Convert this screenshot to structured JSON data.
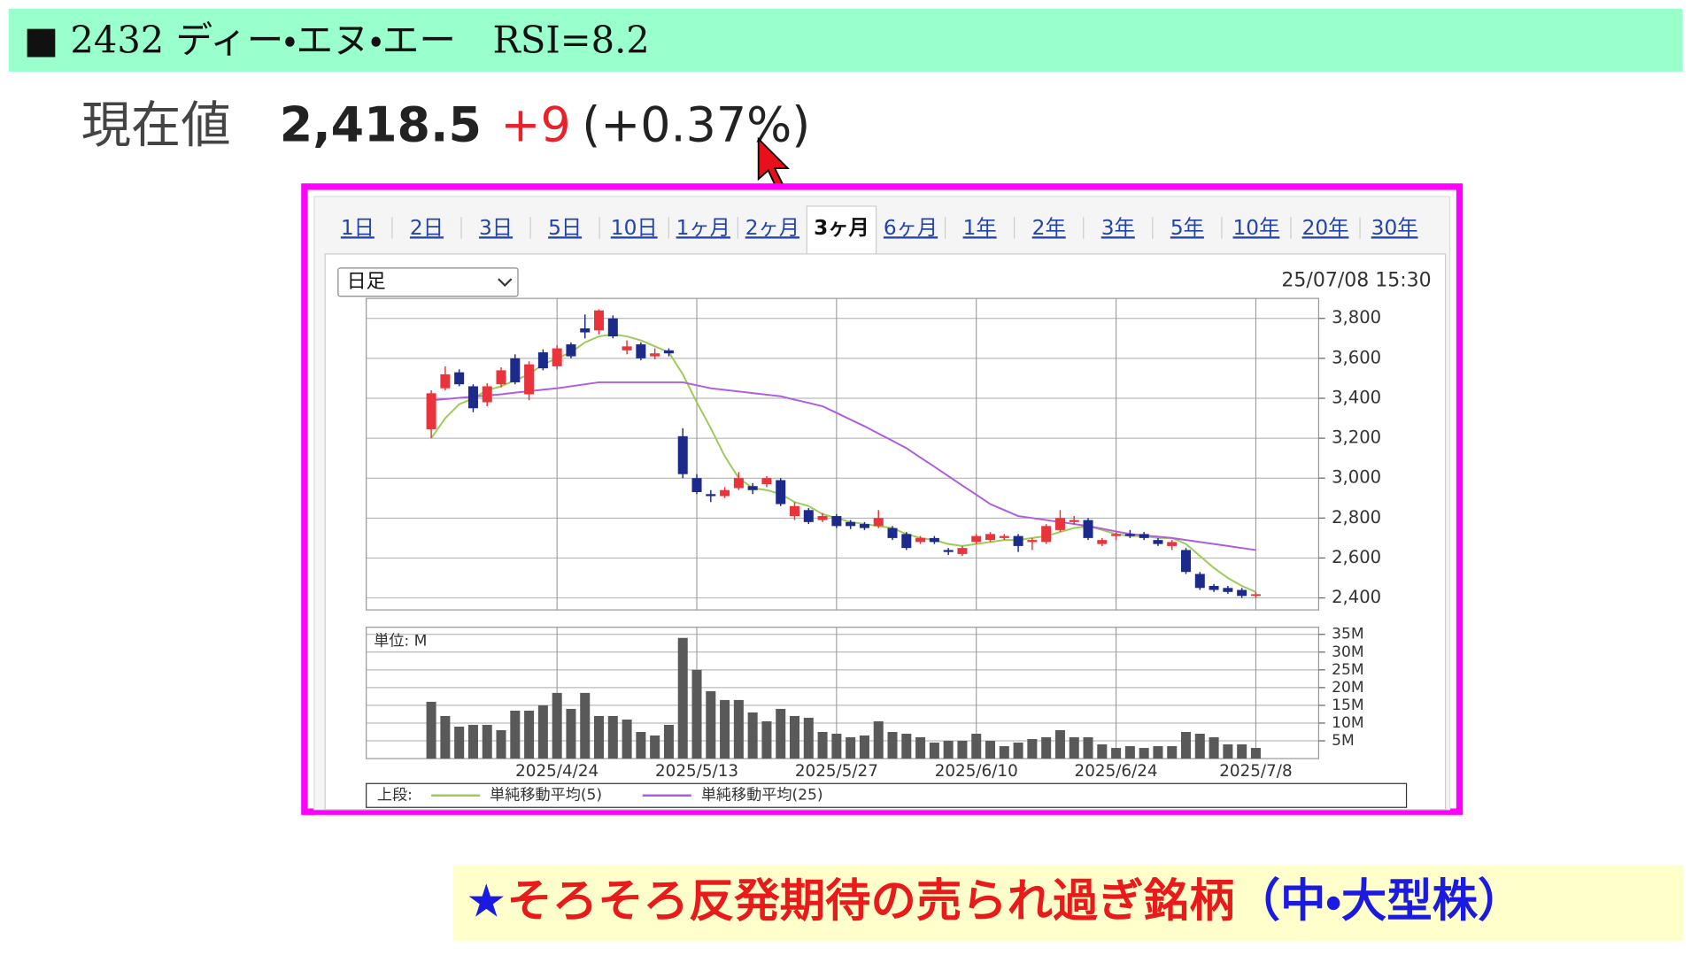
{
  "header": {
    "title": "■ 2432 ディー・エヌ・エー　RSI=8.2"
  },
  "quote": {
    "label": "現在値",
    "price": "2,418.5",
    "change": "+9",
    "change_pct": "(+0.37%)"
  },
  "tabs": [
    {
      "label": "1日",
      "active": false
    },
    {
      "label": "2日",
      "active": false
    },
    {
      "label": "3日",
      "active": false
    },
    {
      "label": "5日",
      "active": false
    },
    {
      "label": "10日",
      "active": false
    },
    {
      "label": "1ヶ月",
      "active": false
    },
    {
      "label": "2ヶ月",
      "active": false
    },
    {
      "label": "3ヶ月",
      "active": true
    },
    {
      "label": "6ヶ月",
      "active": false
    },
    {
      "label": "1年",
      "active": false
    },
    {
      "label": "2年",
      "active": false
    },
    {
      "label": "3年",
      "active": false
    },
    {
      "label": "5年",
      "active": false
    },
    {
      "label": "10年",
      "active": false
    },
    {
      "label": "20年",
      "active": false
    },
    {
      "label": "30年",
      "active": false
    }
  ],
  "controls": {
    "period_select": "日足",
    "timestamp": "25/07/08 15:30"
  },
  "chart_data": [
    {
      "type": "candlestick",
      "up_color": "#e8343a",
      "down_color": "#1c2a8c",
      "grid": true,
      "ylim": [
        2340,
        3900
      ],
      "yticks": [
        {
          "value": 2400,
          "label": "2,400"
        },
        {
          "value": 2600,
          "label": "2,600"
        },
        {
          "value": 2800,
          "label": "2,800"
        },
        {
          "value": 3000,
          "label": "3,000"
        },
        {
          "value": 3200,
          "label": "3,200"
        },
        {
          "value": 3400,
          "label": "3,400"
        },
        {
          "value": 3600,
          "label": "3,600"
        },
        {
          "value": 3800,
          "label": "3,800"
        }
      ],
      "open": [
        3245,
        3450,
        3530,
        3460,
        3380,
        3470,
        3600,
        3420,
        3630,
        3560,
        3670,
        3750,
        3740,
        3800,
        3640,
        3670,
        3610,
        3640,
        3210,
        3000,
        2920,
        2910,
        2950,
        2960,
        2970,
        2990,
        2810,
        2840,
        2790,
        2810,
        2780,
        2770,
        2760,
        2750,
        2720,
        2680,
        2700,
        2640,
        2620,
        2680,
        2690,
        2700,
        2710,
        2680,
        2680,
        2740,
        2780,
        2790,
        2670,
        2710,
        2720,
        2720,
        2690,
        2660,
        2640,
        2520,
        2460,
        2450,
        2440,
        2412
      ],
      "high": [
        3440,
        3560,
        3545,
        3470,
        3475,
        3555,
        3620,
        3585,
        3645,
        3665,
        3680,
        3820,
        3845,
        3815,
        3690,
        3680,
        3650,
        3650,
        3250,
        3020,
        2940,
        2955,
        3030,
        2975,
        3010,
        3000,
        2880,
        2850,
        2825,
        2820,
        2790,
        2780,
        2840,
        2760,
        2730,
        2710,
        2710,
        2650,
        2660,
        2720,
        2730,
        2720,
        2720,
        2700,
        2770,
        2840,
        2810,
        2800,
        2700,
        2730,
        2740,
        2730,
        2700,
        2690,
        2650,
        2530,
        2470,
        2460,
        2450,
        2430
      ],
      "low": [
        3200,
        3440,
        3460,
        3330,
        3360,
        3455,
        3470,
        3390,
        3540,
        3545,
        3600,
        3700,
        3720,
        3700,
        3620,
        3590,
        3595,
        3610,
        3000,
        2920,
        2880,
        2900,
        2940,
        2920,
        2955,
        2860,
        2790,
        2770,
        2780,
        2750,
        2745,
        2740,
        2750,
        2690,
        2640,
        2670,
        2670,
        2615,
        2610,
        2670,
        2680,
        2690,
        2630,
        2640,
        2670,
        2730,
        2770,
        2690,
        2660,
        2690,
        2700,
        2690,
        2660,
        2640,
        2520,
        2440,
        2430,
        2420,
        2400,
        2400
      ],
      "close": [
        3425,
        3520,
        3470,
        3350,
        3460,
        3540,
        3480,
        3570,
        3550,
        3650,
        3610,
        3730,
        3840,
        3710,
        3660,
        3600,
        3625,
        3625,
        3020,
        2930,
        2910,
        2940,
        3000,
        2940,
        3000,
        2870,
        2860,
        2780,
        2810,
        2760,
        2760,
        2750,
        2800,
        2700,
        2650,
        2700,
        2680,
        2630,
        2650,
        2710,
        2720,
        2710,
        2660,
        2690,
        2760,
        2800,
        2790,
        2700,
        2690,
        2720,
        2710,
        2700,
        2670,
        2680,
        2530,
        2450,
        2440,
        2430,
        2410,
        2418.5
      ],
      "legend_title": "上段:",
      "series": [
        {
          "name": "単純移動平均(5)",
          "color": "#9ccc55",
          "values": [
            3200,
            3300,
            3370,
            3400,
            3440,
            3460,
            3490,
            3520,
            3570,
            3600,
            3630,
            3680,
            3710,
            3720,
            3710,
            3690,
            3660,
            3630,
            3520,
            3380,
            3250,
            3110,
            3000,
            2950,
            2940,
            2920,
            2880,
            2860,
            2820,
            2800,
            2780,
            2770,
            2760,
            2750,
            2720,
            2700,
            2690,
            2670,
            2660,
            2670,
            2680,
            2690,
            2690,
            2700,
            2710,
            2730,
            2750,
            2760,
            2740,
            2720,
            2710,
            2710,
            2700,
            2700,
            2670,
            2610,
            2550,
            2500,
            2460,
            2430
          ]
        },
        {
          "name": "単純移動平均(25)",
          "color": "#b05be0",
          "values": [
            3390,
            3396,
            3402,
            3408,
            3414,
            3420,
            3428,
            3435,
            3443,
            3450,
            3460,
            3470,
            3480,
            3480,
            3480,
            3480,
            3480,
            3480,
            3480,
            3465,
            3450,
            3442,
            3434,
            3426,
            3418,
            3410,
            3393,
            3377,
            3360,
            3327,
            3293,
            3260,
            3223,
            3187,
            3150,
            3103,
            3057,
            3010,
            2963,
            2917,
            2870,
            2840,
            2810,
            2800,
            2790,
            2780,
            2770,
            2760,
            2747,
            2733,
            2720,
            2713,
            2707,
            2700,
            2690,
            2680,
            2670,
            2660,
            2650,
            2640
          ]
        }
      ]
    },
    {
      "type": "bar",
      "color": "#595959",
      "grid": true,
      "unit_label": "単位: M",
      "ylim": [
        0,
        37
      ],
      "yticks": [
        {
          "value": 5,
          "label": "5M"
        },
        {
          "value": 10,
          "label": "10M"
        },
        {
          "value": 15,
          "label": "15M"
        },
        {
          "value": 20,
          "label": "20M"
        },
        {
          "value": 25,
          "label": "25M"
        },
        {
          "value": 30,
          "label": "30M"
        },
        {
          "value": 35,
          "label": "35M"
        }
      ],
      "categories": [
        null,
        null,
        null,
        null,
        null,
        null,
        null,
        null,
        null,
        "2025/4/24",
        null,
        null,
        null,
        null,
        null,
        null,
        null,
        null,
        null,
        "2025/5/13",
        null,
        null,
        null,
        null,
        null,
        null,
        null,
        null,
        null,
        "2025/5/27",
        null,
        null,
        null,
        null,
        null,
        null,
        null,
        null,
        null,
        "2025/6/10",
        null,
        null,
        null,
        null,
        null,
        null,
        null,
        null,
        null,
        "2025/6/24",
        null,
        null,
        null,
        null,
        null,
        null,
        null,
        null,
        null,
        "2025/7/8"
      ],
      "values": [
        16,
        12,
        9,
        9.5,
        9.5,
        8,
        13.5,
        13.5,
        15,
        18.5,
        14,
        18.5,
        12,
        12,
        11,
        7.5,
        6.5,
        9.5,
        34,
        25,
        19,
        16.5,
        16.5,
        13,
        10.5,
        14,
        12,
        11.5,
        7.5,
        7,
        6,
        6.5,
        10.5,
        7.5,
        7,
        6,
        4.5,
        5,
        5,
        7,
        5,
        3.5,
        4.5,
        5.5,
        6,
        8,
        6,
        6,
        4,
        3,
        3.5,
        3,
        3.5,
        3.5,
        7.5,
        7,
        6,
        4,
        4,
        3
      ]
    }
  ],
  "banner": {
    "star": "★",
    "text": "そろそろ反発期待の売られ過ぎ銘柄",
    "suffix": "（中・大型株）"
  }
}
